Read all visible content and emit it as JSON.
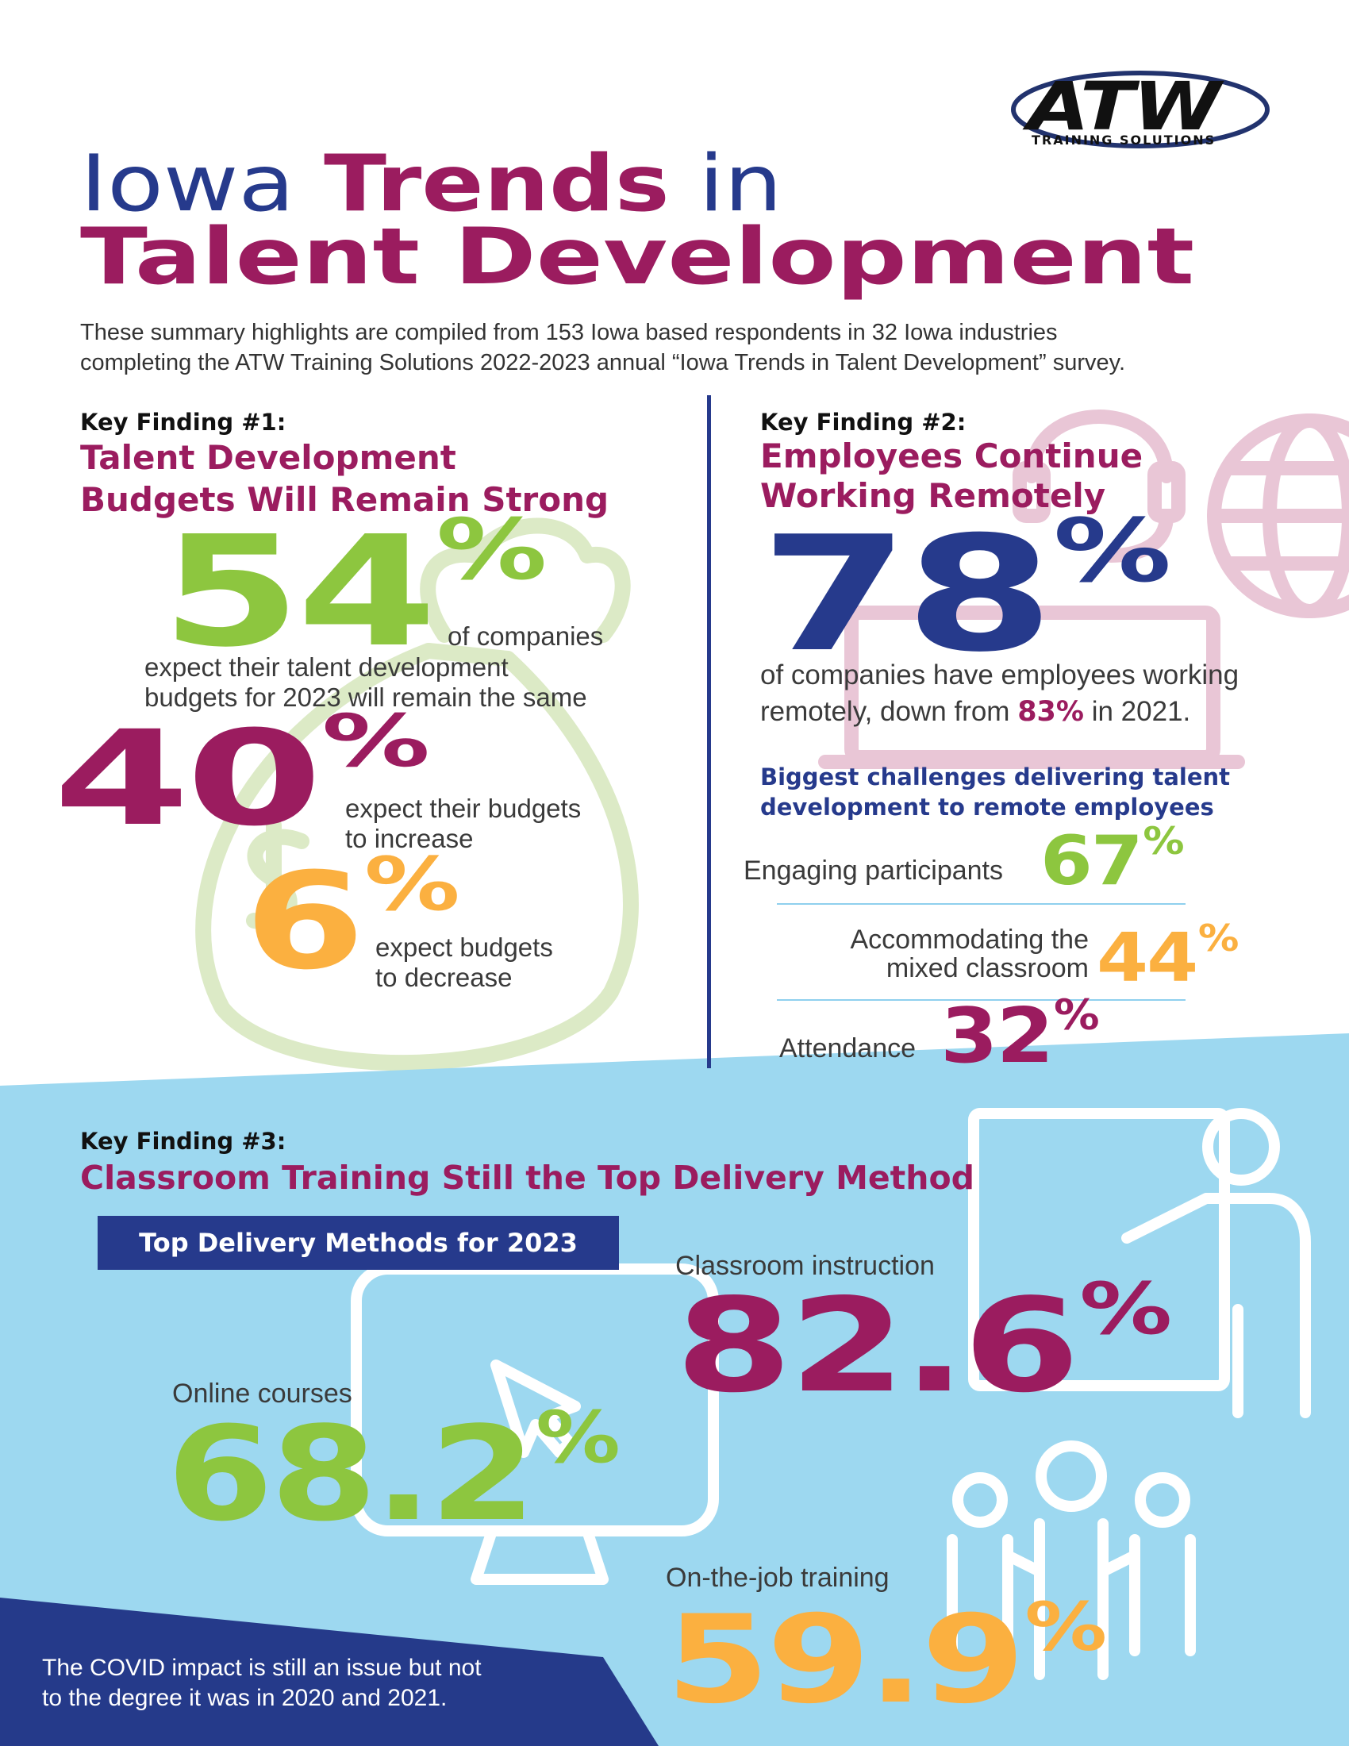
{
  "logo": {
    "name": "ATW",
    "tagline": "TRAINING SOLUTIONS"
  },
  "header": {
    "title": {
      "line1": [
        "Iowa",
        "Trends",
        "in"
      ],
      "line2": "Talent Development"
    },
    "intro": [
      "These summary highlights are compiled from 153 Iowa based respondents in 32 Iowa industries",
      "completing the ATW Training Solutions 2022-2023 annual “Iowa Trends in Talent Development” survey."
    ]
  },
  "finding1": {
    "label": "Key Finding #1:",
    "heading": [
      "Talent Development",
      "Budgets Will Remain Strong"
    ],
    "stats": [
      {
        "value": "54",
        "unit": "%",
        "text": [
          "of companies",
          "expect their talent development",
          "budgets for 2023 will remain the same"
        ]
      },
      {
        "value": "40",
        "unit": "%",
        "text": [
          "expect their budgets",
          "to increase"
        ]
      },
      {
        "value": "6",
        "unit": "%",
        "text": [
          "expect budgets",
          "to decrease"
        ]
      }
    ]
  },
  "finding2": {
    "label": "Key Finding #2:",
    "heading": [
      "Employees Continue",
      "Working Remotely"
    ],
    "stat": {
      "value": "78",
      "unit": "%"
    },
    "detail": {
      "line1": "of companies have employees working",
      "line2": [
        "remotely, down from",
        "83%",
        "in 2021."
      ]
    },
    "challenges": {
      "title": [
        "Biggest challenges delivering talent",
        "development to remote employees"
      ],
      "items": [
        {
          "label": [
            "Engaging participants"
          ],
          "value": "67",
          "unit": "%"
        },
        {
          "label": [
            "Accommodating the",
            "mixed classroom"
          ],
          "value": "44",
          "unit": "%"
        },
        {
          "label": [
            "Attendance"
          ],
          "value": "32",
          "unit": "%"
        }
      ]
    }
  },
  "finding3": {
    "label": "Key Finding #3:",
    "heading": "Classroom Training Still the Top Delivery Method",
    "box": "Top Delivery Methods for 2023",
    "methods": [
      {
        "label": "Classroom instruction",
        "value": "82.6",
        "unit": "%"
      },
      {
        "label": "Online courses",
        "value": "68.2",
        "unit": "%"
      },
      {
        "label": "On-the-job training",
        "value": "59.9",
        "unit": "%"
      }
    ]
  },
  "note": [
    "The COVID impact is still an issue but not",
    "to the degree it was in 2020 and 2021."
  ]
}
